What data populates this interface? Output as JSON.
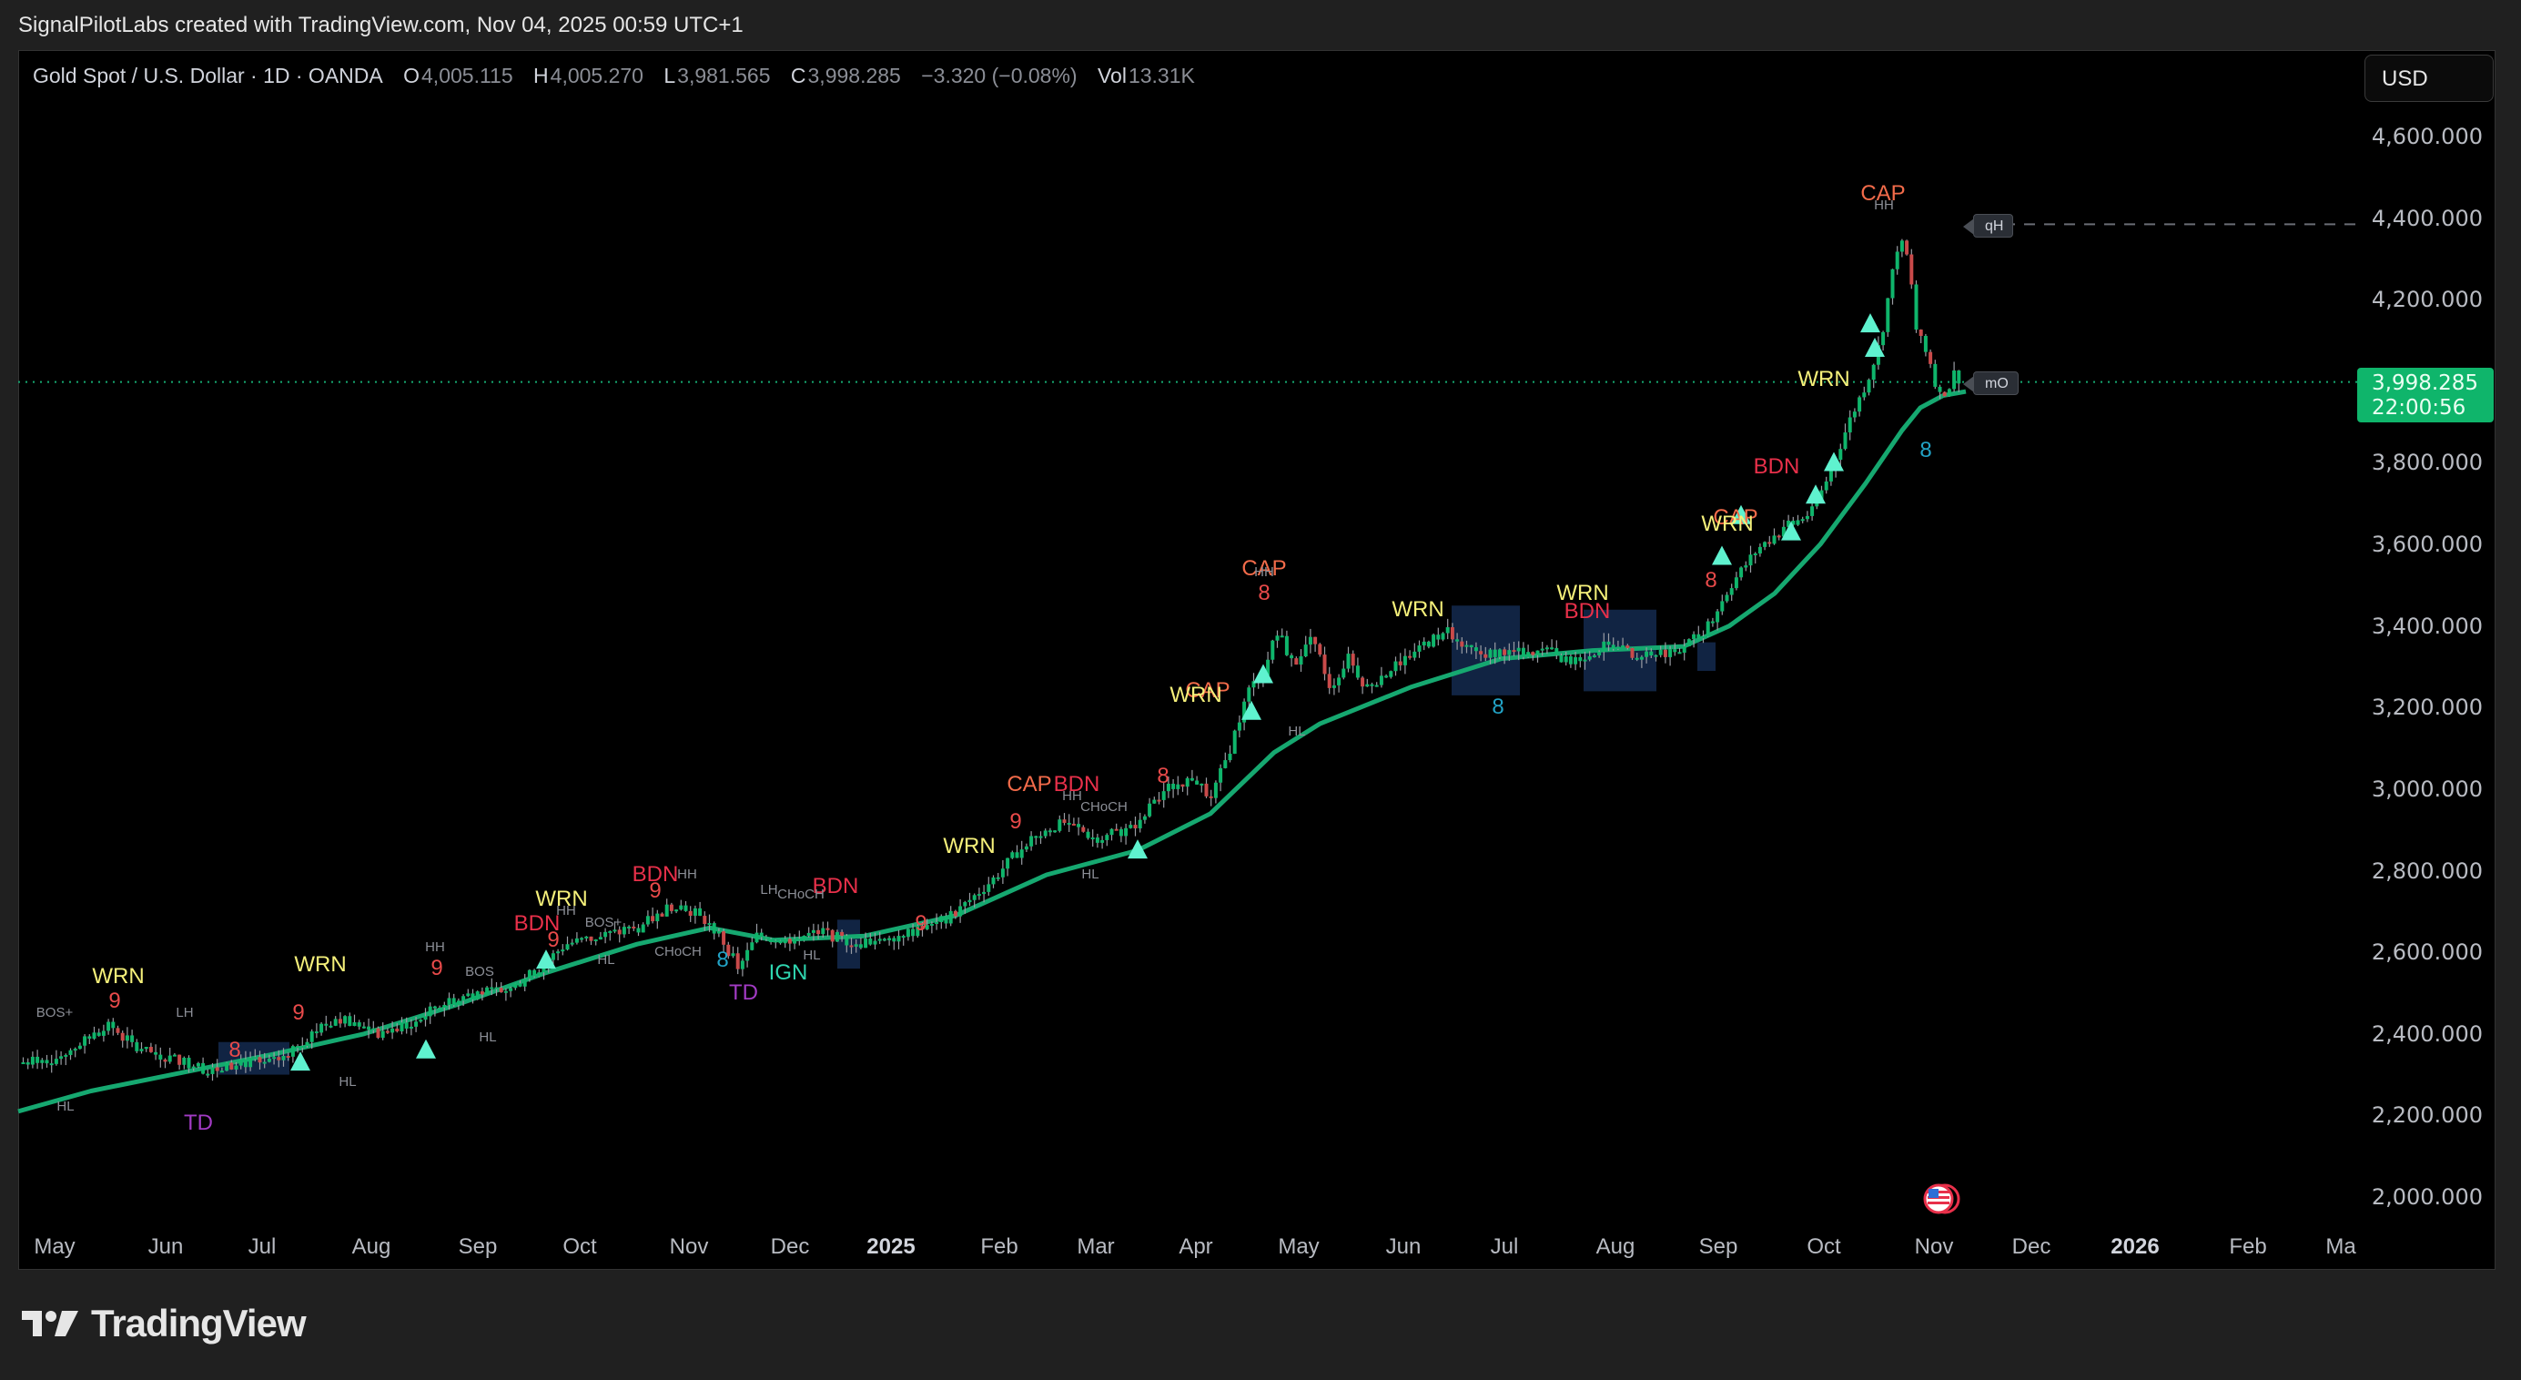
{
  "credit": "SignalPilotLabs created with TradingView.com, Nov 04, 2025 00:59 UTC+1",
  "legend": {
    "symbol": "Gold Spot / U.S. Dollar · 1D · OANDA",
    "open_label": "O",
    "open": "4,005.115",
    "high_label": "H",
    "high": "4,005.270",
    "low_label": "L",
    "low": "3,981.565",
    "close_label": "C",
    "close": "3,998.285",
    "change": "−3.320 (−0.08%)",
    "vol_label": "Vol",
    "vol": "13.31K"
  },
  "currency_button": "USD",
  "last_price": {
    "price": "3,998.285",
    "countdown": "22:00:56"
  },
  "levels": [
    {
      "label": "qH",
      "price": 4385
    },
    {
      "label": "mO",
      "price": 3998.285
    }
  ],
  "colors": {
    "up": "#0fb56b",
    "down": "#f23645",
    "ma": "#16a870",
    "ma_warn": "#f0a020",
    "wrn": "#f5f07a",
    "cap": "#f26b4a",
    "bdn": "#e8304a",
    "ign": "#2fd6b0",
    "td": "#a23bc4",
    "count": "#e84a4a",
    "count_alt": "#22a3c6",
    "zone": "#13284a",
    "triangle": "#5ff2cf",
    "struct": "#8b8e96"
  },
  "footer": {
    "brand": "TradingView"
  },
  "chart_data": {
    "type": "candlestick",
    "title": "Gold Spot / U.S. Dollar · 1D · OANDA",
    "xlabel": "",
    "ylabel": "USD",
    "ylim": [
      1950,
      4700
    ],
    "y_ticks": [
      "4,600.000",
      "4,400.000",
      "4,200.000",
      "4,000.000",
      "3,800.000",
      "3,600.000",
      "3,400.000",
      "3,200.000",
      "3,000.000",
      "2,800.000",
      "2,600.000",
      "2,400.000",
      "2,200.000",
      "2,000.000"
    ],
    "y_tick_values": [
      4600,
      4400,
      4200,
      4000,
      3800,
      3600,
      3400,
      3200,
      3000,
      2800,
      2600,
      2400,
      2200,
      2000
    ],
    "x_ticks": [
      {
        "label": "May",
        "x": 60
      },
      {
        "label": "Jun",
        "x": 182
      },
      {
        "label": "Jul",
        "x": 288
      },
      {
        "label": "Aug",
        "x": 408
      },
      {
        "label": "Sep",
        "x": 525
      },
      {
        "label": "Oct",
        "x": 637
      },
      {
        "label": "Nov",
        "x": 757
      },
      {
        "label": "Dec",
        "x": 868
      },
      {
        "label": "2025",
        "x": 979,
        "bold": true
      },
      {
        "label": "Feb",
        "x": 1098
      },
      {
        "label": "Mar",
        "x": 1204
      },
      {
        "label": "Apr",
        "x": 1314
      },
      {
        "label": "May",
        "x": 1427
      },
      {
        "label": "Jun",
        "x": 1542
      },
      {
        "label": "Jul",
        "x": 1653
      },
      {
        "label": "Aug",
        "x": 1775
      },
      {
        "label": "Sep",
        "x": 1888
      },
      {
        "label": "Oct",
        "x": 2004
      },
      {
        "label": "Nov",
        "x": 2125
      },
      {
        "label": "Dec",
        "x": 2232
      },
      {
        "label": "2026",
        "x": 2346,
        "bold": true
      },
      {
        "label": "Feb",
        "x": 2470
      },
      {
        "label": "Ma",
        "x": 2572
      }
    ],
    "price_path": [
      [
        22,
        2330
      ],
      [
        60,
        2340
      ],
      [
        120,
        2420
      ],
      [
        150,
        2360
      ],
      [
        190,
        2340
      ],
      [
        230,
        2310
      ],
      [
        270,
        2330
      ],
      [
        300,
        2330
      ],
      [
        340,
        2400
      ],
      [
        370,
        2440
      ],
      [
        410,
        2400
      ],
      [
        450,
        2420
      ],
      [
        480,
        2470
      ],
      [
        520,
        2500
      ],
      [
        560,
        2510
      ],
      [
        590,
        2560
      ],
      [
        620,
        2620
      ],
      [
        660,
        2640
      ],
      [
        700,
        2660
      ],
      [
        740,
        2720
      ],
      [
        760,
        2700
      ],
      [
        790,
        2640
      ],
      [
        810,
        2560
      ],
      [
        830,
        2640
      ],
      [
        860,
        2630
      ],
      [
        900,
        2650
      ],
      [
        940,
        2620
      ],
      [
        980,
        2640
      ],
      [
        1020,
        2660
      ],
      [
        1050,
        2700
      ],
      [
        1090,
        2780
      ],
      [
        1130,
        2880
      ],
      [
        1170,
        2920
      ],
      [
        1200,
        2880
      ],
      [
        1240,
        2900
      ],
      [
        1280,
        3000
      ],
      [
        1310,
        3030
      ],
      [
        1330,
        2980
      ],
      [
        1350,
        3100
      ],
      [
        1370,
        3240
      ],
      [
        1390,
        3300
      ],
      [
        1400,
        3400
      ],
      [
        1420,
        3300
      ],
      [
        1440,
        3380
      ],
      [
        1460,
        3250
      ],
      [
        1480,
        3320
      ],
      [
        1500,
        3250
      ],
      [
        1530,
        3300
      ],
      [
        1560,
        3350
      ],
      [
        1590,
        3390
      ],
      [
        1620,
        3330
      ],
      [
        1650,
        3340
      ],
      [
        1680,
        3330
      ],
      [
        1700,
        3360
      ],
      [
        1720,
        3310
      ],
      [
        1760,
        3350
      ],
      [
        1800,
        3330
      ],
      [
        1840,
        3340
      ],
      [
        1870,
        3380
      ],
      [
        1900,
        3500
      ],
      [
        1930,
        3590
      ],
      [
        1960,
        3640
      ],
      [
        1990,
        3680
      ],
      [
        2010,
        3780
      ],
      [
        2030,
        3900
      ],
      [
        2050,
        4000
      ],
      [
        2065,
        4100
      ],
      [
        2075,
        4230
      ],
      [
        2085,
        4350
      ],
      [
        2095,
        4300
      ],
      [
        2105,
        4110
      ],
      [
        2115,
        4080
      ],
      [
        2125,
        3990
      ],
      [
        2135,
        3950
      ],
      [
        2145,
        4020
      ],
      [
        2155,
        3998
      ]
    ],
    "ma_path": [
      [
        20,
        2210
      ],
      [
        100,
        2260
      ],
      [
        200,
        2305
      ],
      [
        300,
        2350
      ],
      [
        400,
        2400
      ],
      [
        500,
        2470
      ],
      [
        600,
        2550
      ],
      [
        700,
        2620
      ],
      [
        780,
        2660
      ],
      [
        850,
        2630
      ],
      [
        950,
        2640
      ],
      [
        1050,
        2690
      ],
      [
        1150,
        2790
      ],
      [
        1250,
        2850
      ],
      [
        1330,
        2940
      ],
      [
        1400,
        3090
      ],
      [
        1450,
        3160
      ],
      [
        1550,
        3250
      ],
      [
        1650,
        3320
      ],
      [
        1750,
        3340
      ],
      [
        1850,
        3350
      ],
      [
        1900,
        3400
      ],
      [
        1950,
        3480
      ],
      [
        2000,
        3600
      ],
      [
        2050,
        3750
      ],
      [
        2090,
        3880
      ],
      [
        2110,
        3935
      ],
      [
        2135,
        3965
      ],
      [
        2160,
        3975
      ]
    ],
    "zones": [
      {
        "x1": 240,
        "x2": 318,
        "p1": 2380,
        "p2": 2300
      },
      {
        "x1": 1595,
        "x2": 1670,
        "p1": 3450,
        "p2": 3230
      },
      {
        "x1": 1740,
        "x2": 1820,
        "p1": 3440,
        "p2": 3240
      },
      {
        "x1": 1865,
        "x2": 1885,
        "p1": 3360,
        "p2": 3290
      },
      {
        "x1": 920,
        "x2": 945,
        "p1": 2680,
        "p2": 2560
      }
    ],
    "annotations": [
      {
        "text": "WRN",
        "x": 130,
        "p": 2540,
        "cls": "wrn"
      },
      {
        "text": "TD",
        "x": 218,
        "p": 2180,
        "cls": "td"
      },
      {
        "text": "WRN",
        "x": 352,
        "p": 2570,
        "cls": "wrn"
      },
      {
        "text": "WRN",
        "x": 617,
        "p": 2730,
        "cls": "wrn"
      },
      {
        "text": "BDN",
        "x": 590,
        "p": 2670,
        "cls": "bdn"
      },
      {
        "text": "BDN",
        "x": 720,
        "p": 2790,
        "cls": "bdn"
      },
      {
        "text": "BDN",
        "x": 918,
        "p": 2760,
        "cls": "bdn"
      },
      {
        "text": "IGN",
        "x": 866,
        "p": 2550,
        "cls": "ign"
      },
      {
        "text": "TD",
        "x": 817,
        "p": 2500,
        "cls": "td"
      },
      {
        "text": "WRN",
        "x": 1065,
        "p": 2860,
        "cls": "wrn"
      },
      {
        "text": "CAP",
        "x": 1131,
        "p": 3010,
        "cls": "cap"
      },
      {
        "text": "BDN",
        "x": 1183,
        "p": 3010,
        "cls": "bdn"
      },
      {
        "text": "CAP",
        "x": 1327,
        "p": 3240,
        "cls": "cap"
      },
      {
        "text": "WRN",
        "x": 1314,
        "p": 3230,
        "cls": "wrn"
      },
      {
        "text": "CAP",
        "x": 1389,
        "p": 3540,
        "cls": "cap"
      },
      {
        "text": "WRN",
        "x": 1558,
        "p": 3440,
        "cls": "wrn"
      },
      {
        "text": "WRN",
        "x": 1739,
        "p": 3480,
        "cls": "wrn"
      },
      {
        "text": "BDN",
        "x": 1744,
        "p": 3435,
        "cls": "bdn"
      },
      {
        "text": "CAP",
        "x": 1907,
        "p": 3665,
        "cls": "cap"
      },
      {
        "text": "WRN",
        "x": 1898,
        "p": 3650,
        "cls": "wrn"
      },
      {
        "text": "BDN",
        "x": 1952,
        "p": 3790,
        "cls": "bdn"
      },
      {
        "text": "WRN",
        "x": 2004,
        "p": 4005,
        "cls": "wrn"
      },
      {
        "text": "CAP",
        "x": 2069,
        "p": 4460,
        "cls": "cap"
      }
    ],
    "structure_labels": [
      {
        "text": "BOS+",
        "x": 60,
        "p": 2440
      },
      {
        "text": "HL",
        "x": 72,
        "p": 2210
      },
      {
        "text": "LH",
        "x": 203,
        "p": 2440
      },
      {
        "text": "HL",
        "x": 382,
        "p": 2270
      },
      {
        "text": "HH",
        "x": 478,
        "p": 2600
      },
      {
        "text": "BOS",
        "x": 527,
        "p": 2540
      },
      {
        "text": "HL",
        "x": 536,
        "p": 2380
      },
      {
        "text": "HH",
        "x": 622,
        "p": 2690
      },
      {
        "text": "BOS+",
        "x": 663,
        "p": 2660
      },
      {
        "text": "HH",
        "x": 755,
        "p": 2780
      },
      {
        "text": "CHoCH",
        "x": 745,
        "p": 2590
      },
      {
        "text": "HL",
        "x": 666,
        "p": 2570
      },
      {
        "text": "LH",
        "x": 845,
        "p": 2740
      },
      {
        "text": "CHoCH",
        "x": 880,
        "p": 2730
      },
      {
        "text": "HL",
        "x": 892,
        "p": 2580
      },
      {
        "text": "HH",
        "x": 1178,
        "p": 2970
      },
      {
        "text": "CHoCH",
        "x": 1213,
        "p": 2945
      },
      {
        "text": "HL",
        "x": 1198,
        "p": 2780
      },
      {
        "text": "HL",
        "x": 1425,
        "p": 3130
      },
      {
        "text": "HH",
        "x": 1389,
        "p": 3520
      },
      {
        "text": "HH",
        "x": 2070,
        "p": 4420
      }
    ],
    "counts": [
      {
        "text": "9",
        "x": 126,
        "p": 2480,
        "cls": "count"
      },
      {
        "text": "8",
        "x": 258,
        "p": 2360,
        "cls": "count"
      },
      {
        "text": "9",
        "x": 328,
        "p": 2450,
        "cls": "count"
      },
      {
        "text": "9",
        "x": 480,
        "p": 2560,
        "cls": "count"
      },
      {
        "text": "9",
        "x": 608,
        "p": 2630,
        "cls": "count"
      },
      {
        "text": "9",
        "x": 720,
        "p": 2750,
        "cls": "count"
      },
      {
        "text": "8",
        "x": 794,
        "p": 2580,
        "cls": "count_alt"
      },
      {
        "text": "9",
        "x": 1012,
        "p": 2670,
        "cls": "count"
      },
      {
        "text": "9",
        "x": 1116,
        "p": 2920,
        "cls": "count"
      },
      {
        "text": "8",
        "x": 1278,
        "p": 3030,
        "cls": "count"
      },
      {
        "text": "8",
        "x": 1389,
        "p": 3480,
        "cls": "count"
      },
      {
        "text": "8",
        "x": 1646,
        "p": 3200,
        "cls": "count_alt"
      },
      {
        "text": "8",
        "x": 1880,
        "p": 3510,
        "cls": "count"
      },
      {
        "text": "8",
        "x": 2116,
        "p": 3830,
        "cls": "count_alt"
      }
    ],
    "triangles": [
      {
        "x": 330,
        "p": 2330
      },
      {
        "x": 468,
        "p": 2360
      },
      {
        "x": 600,
        "p": 2580
      },
      {
        "x": 1250,
        "p": 2850
      },
      {
        "x": 1375,
        "p": 3190
      },
      {
        "x": 1388,
        "p": 3280
      },
      {
        "x": 1892,
        "p": 3570
      },
      {
        "x": 1913,
        "p": 3670
      },
      {
        "x": 1968,
        "p": 3630
      },
      {
        "x": 1995,
        "p": 3720
      },
      {
        "x": 2015,
        "p": 3800
      },
      {
        "x": 2055,
        "p": 4140
      },
      {
        "x": 2060,
        "p": 4080
      }
    ]
  }
}
